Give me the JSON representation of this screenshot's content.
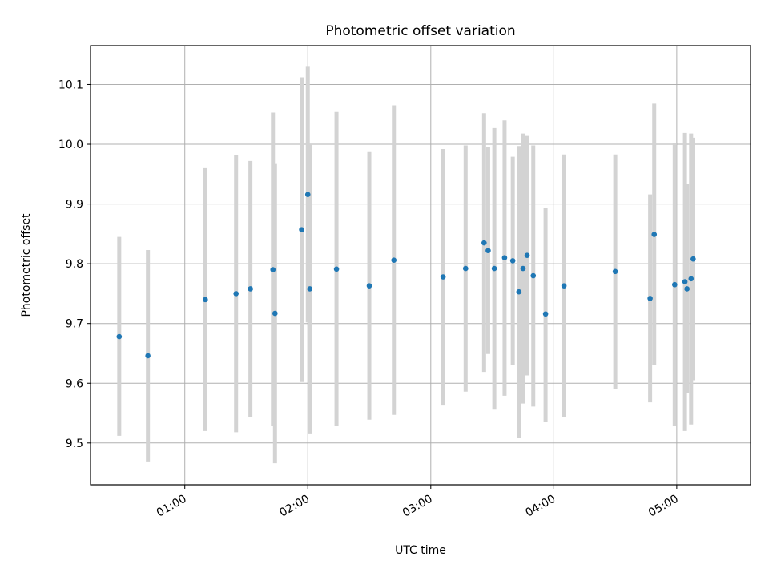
{
  "chart_data": {
    "type": "scatter",
    "title": "Photometric offset variation",
    "xlabel": "UTC time",
    "ylabel": "Photometric offset",
    "x_unit": "UTC hh:mm",
    "xlim": [
      "00:14",
      "05:36"
    ],
    "ylim": [
      9.43,
      10.165
    ],
    "x_ticks": [
      "01:00",
      "02:00",
      "03:00",
      "04:00",
      "05:00"
    ],
    "y_ticks": [
      9.5,
      9.6,
      9.7,
      9.8,
      9.9,
      10.0,
      10.1
    ],
    "grid": true,
    "legend": "none",
    "marker_color": "#1f77b4",
    "errorbar_color": "#d3d3d3",
    "points": [
      {
        "x": "00:28",
        "y": 9.678,
        "ylow": 9.512,
        "yhigh": 9.845
      },
      {
        "x": "00:42",
        "y": 9.646,
        "ylow": 9.469,
        "yhigh": 9.823
      },
      {
        "x": "01:10",
        "y": 9.74,
        "ylow": 9.52,
        "yhigh": 9.96
      },
      {
        "x": "01:25",
        "y": 9.75,
        "ylow": 9.518,
        "yhigh": 9.982
      },
      {
        "x": "01:32",
        "y": 9.758,
        "ylow": 9.544,
        "yhigh": 9.972
      },
      {
        "x": "01:43",
        "y": 9.79,
        "ylow": 9.528,
        "yhigh": 10.053
      },
      {
        "x": "01:44",
        "y": 9.717,
        "ylow": 9.466,
        "yhigh": 9.967
      },
      {
        "x": "01:57",
        "y": 9.857,
        "ylow": 9.602,
        "yhigh": 10.112
      },
      {
        "x": "02:00",
        "y": 9.916,
        "ylow": 9.702,
        "yhigh": 10.131
      },
      {
        "x": "02:01",
        "y": 9.758,
        "ylow": 9.516,
        "yhigh": 10.0
      },
      {
        "x": "02:14",
        "y": 9.791,
        "ylow": 9.528,
        "yhigh": 10.054
      },
      {
        "x": "02:30",
        "y": 9.763,
        "ylow": 9.539,
        "yhigh": 9.987
      },
      {
        "x": "02:42",
        "y": 9.806,
        "ylow": 9.547,
        "yhigh": 10.065
      },
      {
        "x": "03:06",
        "y": 9.778,
        "ylow": 9.564,
        "yhigh": 9.992
      },
      {
        "x": "03:17",
        "y": 9.792,
        "ylow": 9.586,
        "yhigh": 9.998
      },
      {
        "x": "03:26",
        "y": 9.835,
        "ylow": 9.619,
        "yhigh": 10.052
      },
      {
        "x": "03:28",
        "y": 9.822,
        "ylow": 9.649,
        "yhigh": 9.995
      },
      {
        "x": "03:31",
        "y": 9.792,
        "ylow": 9.557,
        "yhigh": 10.027
      },
      {
        "x": "03:36",
        "y": 9.81,
        "ylow": 9.579,
        "yhigh": 10.04
      },
      {
        "x": "03:40",
        "y": 9.805,
        "ylow": 9.631,
        "yhigh": 9.979
      },
      {
        "x": "03:43",
        "y": 9.753,
        "ylow": 9.509,
        "yhigh": 9.997
      },
      {
        "x": "03:45",
        "y": 9.792,
        "ylow": 9.566,
        "yhigh": 10.018
      },
      {
        "x": "03:47",
        "y": 9.814,
        "ylow": 9.613,
        "yhigh": 10.014
      },
      {
        "x": "03:50",
        "y": 9.78,
        "ylow": 9.561,
        "yhigh": 9.998
      },
      {
        "x": "03:56",
        "y": 9.716,
        "ylow": 9.536,
        "yhigh": 9.893
      },
      {
        "x": "04:05",
        "y": 9.763,
        "ylow": 9.544,
        "yhigh": 9.983
      },
      {
        "x": "04:30",
        "y": 9.787,
        "ylow": 9.591,
        "yhigh": 9.983
      },
      {
        "x": "04:47",
        "y": 9.742,
        "ylow": 9.568,
        "yhigh": 9.916
      },
      {
        "x": "04:49",
        "y": 9.849,
        "ylow": 9.63,
        "yhigh": 10.068
      },
      {
        "x": "04:59",
        "y": 9.765,
        "ylow": 9.528,
        "yhigh": 10.002
      },
      {
        "x": "05:04",
        "y": 9.77,
        "ylow": 9.52,
        "yhigh": 10.019
      },
      {
        "x": "05:05",
        "y": 9.758,
        "ylow": 9.583,
        "yhigh": 9.934
      },
      {
        "x": "05:07",
        "y": 9.775,
        "ylow": 9.531,
        "yhigh": 10.018
      },
      {
        "x": "05:08",
        "y": 9.808,
        "ylow": 9.605,
        "yhigh": 10.011
      }
    ]
  }
}
